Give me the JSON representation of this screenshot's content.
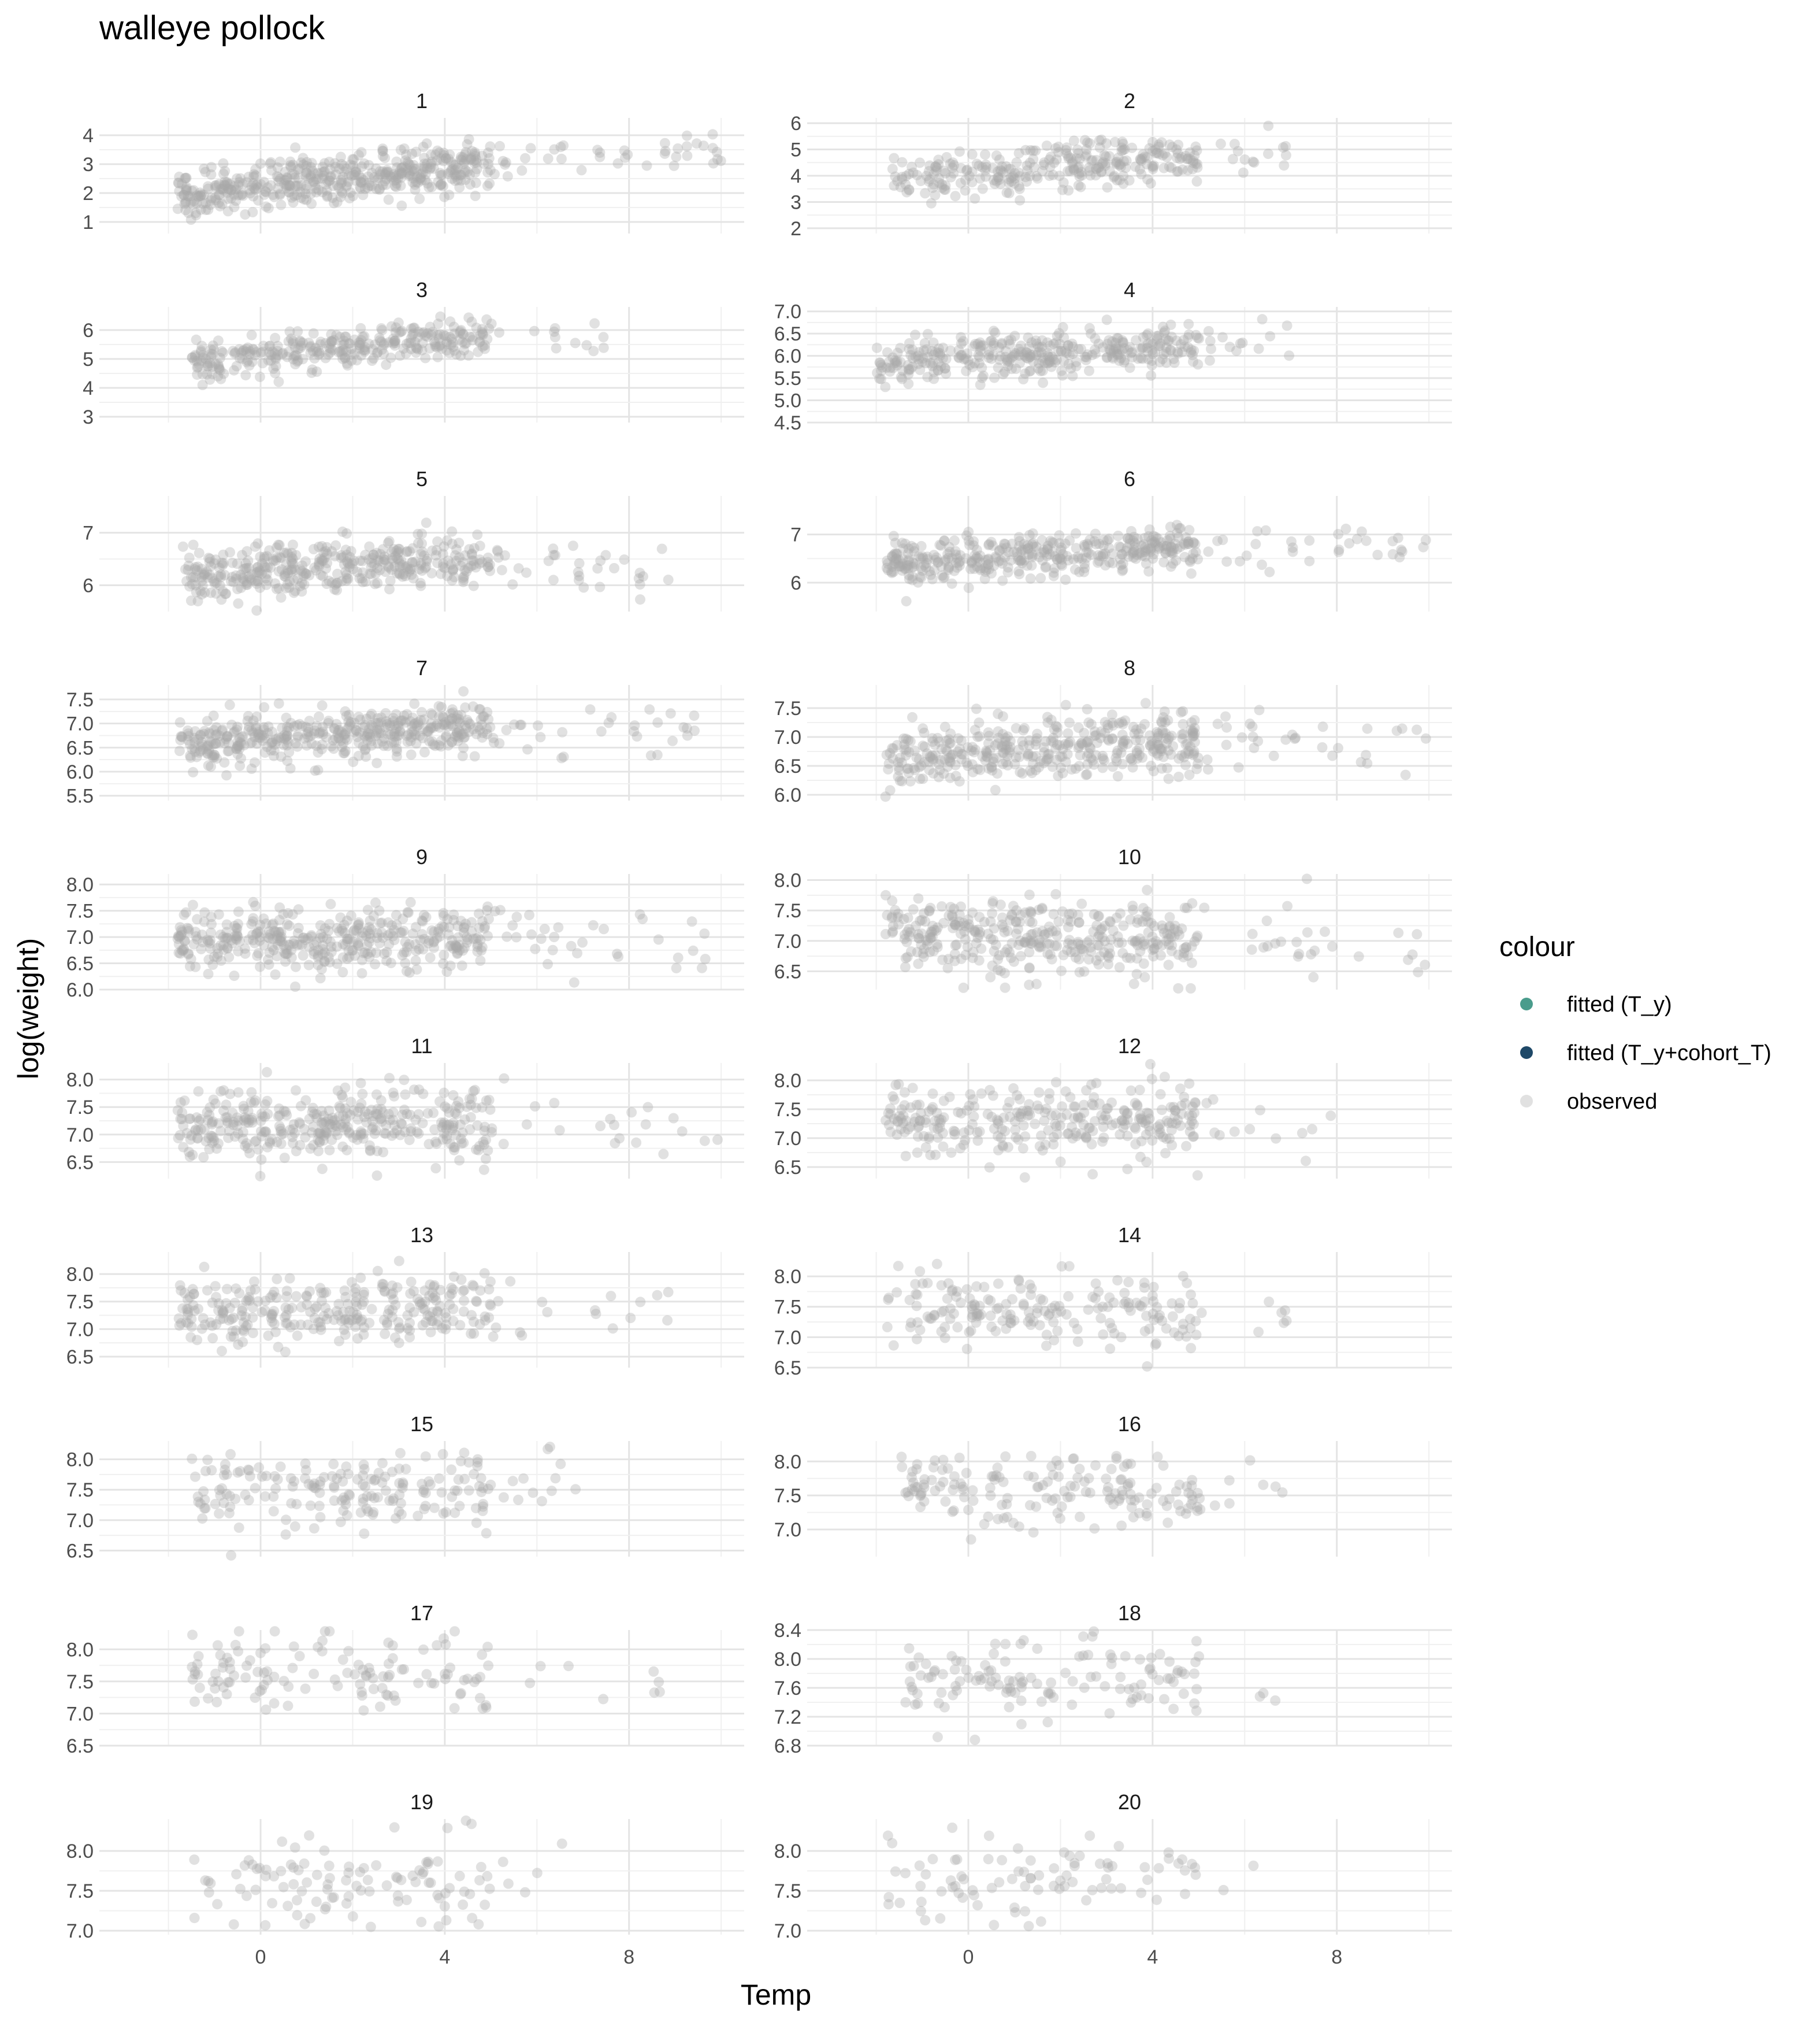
{
  "chart_data": {
    "type": "scatter",
    "title": "walleye pollock",
    "xlabel": "Temp",
    "ylabel": "log(weight)",
    "legend": {
      "title": "colour",
      "position": "right",
      "entries": [
        {
          "label": "fitted (T_y)",
          "color": "#4a9c8c"
        },
        {
          "label": "fitted (T_y+cohort_T)",
          "color": "#1f4968"
        },
        {
          "label": "observed",
          "color": "#c8c8c8"
        }
      ]
    },
    "x_range": [
      -3.5,
      10.5
    ],
    "x_ticks": [
      0,
      4,
      8
    ],
    "x_minor_ticks": [
      -2,
      2,
      6,
      10
    ],
    "grid": true,
    "point_color": "#aaaaaa",
    "point_opacity": 0.35,
    "panels": [
      {
        "label": "1",
        "ylim": [
          0.6,
          4.6
        ],
        "yticks": [
          1,
          2,
          3,
          4
        ],
        "tick_format": "int",
        "trend": [
          [
            -1.5,
            2.0
          ],
          [
            4,
            2.9
          ],
          [
            10,
            3.5
          ]
        ],
        "spread": 0.4,
        "x_range": [
          -1.8,
          10
        ],
        "n": 520
      },
      {
        "label": "2",
        "ylim": [
          1.8,
          6.2
        ],
        "yticks": [
          2,
          3,
          4,
          5,
          6
        ],
        "tick_format": "int",
        "trend": [
          [
            -1.5,
            3.9
          ],
          [
            4,
            4.6
          ],
          [
            7,
            4.9
          ]
        ],
        "spread": 0.45,
        "x_range": [
          -1.8,
          7
        ],
        "n": 300
      },
      {
        "label": "3",
        "ylim": [
          2.8,
          6.8
        ],
        "yticks": [
          3,
          4,
          5,
          6
        ],
        "tick_format": "int",
        "trend": [
          [
            -1,
            5.0
          ],
          [
            5,
            5.8
          ],
          [
            7,
            5.7
          ]
        ],
        "spread": 0.35,
        "x_range": [
          -1.5,
          7.5
        ],
        "n": 330
      },
      {
        "label": "4",
        "ylim": [
          4.5,
          7.1
        ],
        "yticks": [
          4.5,
          5.0,
          5.5,
          6.0,
          6.5,
          7.0
        ],
        "tick_format": "1dp",
        "trend": [
          [
            -2,
            5.85
          ],
          [
            4,
            6.2
          ],
          [
            7,
            6.4
          ]
        ],
        "spread": 0.25,
        "x_range": [
          -2,
          7
        ],
        "n": 360
      },
      {
        "label": "5",
        "ylim": [
          5.5,
          7.7
        ],
        "yticks": [
          6,
          7
        ],
        "tick_format": "int",
        "trend": [
          [
            -1.5,
            6.2
          ],
          [
            4,
            6.5
          ],
          [
            9,
            6.3
          ]
        ],
        "spread": 0.25,
        "x_range": [
          -1.7,
          9
        ],
        "n": 420
      },
      {
        "label": "6",
        "ylim": [
          5.4,
          7.8
        ],
        "yticks": [
          6,
          7
        ],
        "tick_format": "int",
        "trend": [
          [
            -1.5,
            6.4
          ],
          [
            4,
            6.7
          ],
          [
            10,
            6.7
          ]
        ],
        "spread": 0.22,
        "x_range": [
          -1.8,
          10
        ],
        "n": 420
      },
      {
        "label": "7",
        "ylim": [
          5.4,
          7.8
        ],
        "yticks": [
          5.5,
          6.0,
          6.5,
          7.0,
          7.5
        ],
        "tick_format": "1dp",
        "trend": [
          [
            -1.5,
            6.6
          ],
          [
            4,
            6.9
          ],
          [
            9.5,
            6.8
          ]
        ],
        "spread": 0.25,
        "x_range": [
          -1.8,
          9.5
        ],
        "n": 460
      },
      {
        "label": "8",
        "ylim": [
          5.9,
          7.9
        ],
        "yticks": [
          6.0,
          6.5,
          7.0,
          7.5
        ],
        "tick_format": "1dp",
        "trend": [
          [
            -1.5,
            6.7
          ],
          [
            4,
            6.9
          ],
          [
            10,
            6.9
          ]
        ],
        "spread": 0.28,
        "x_range": [
          -1.8,
          10
        ],
        "n": 420
      },
      {
        "label": "9",
        "ylim": [
          6.0,
          8.2
        ],
        "yticks": [
          6.0,
          6.5,
          7.0,
          7.5,
          8.0
        ],
        "tick_format": "1dp",
        "trend": [
          [
            -1.5,
            6.9
          ],
          [
            4,
            7.0
          ],
          [
            10,
            6.9
          ]
        ],
        "spread": 0.32,
        "x_range": [
          -1.8,
          10
        ],
        "n": 420
      },
      {
        "label": "10",
        "ylim": [
          6.2,
          8.1
        ],
        "yticks": [
          6.5,
          7.0,
          7.5,
          8.0
        ],
        "tick_format": "1dp",
        "trend": [
          [
            -1.5,
            7.1
          ],
          [
            4,
            7.0
          ],
          [
            10,
            6.9
          ]
        ],
        "spread": 0.3,
        "x_range": [
          -1.8,
          10
        ],
        "n": 380
      },
      {
        "label": "11",
        "ylim": [
          6.2,
          8.3
        ],
        "yticks": [
          6.5,
          7.0,
          7.5,
          8.0
        ],
        "tick_format": "1dp",
        "trend": [
          [
            -1.5,
            7.2
          ],
          [
            4,
            7.2
          ],
          [
            10,
            7.0
          ]
        ],
        "spread": 0.3,
        "x_range": [
          -1.8,
          10
        ],
        "n": 380
      },
      {
        "label": "12",
        "ylim": [
          6.3,
          8.3
        ],
        "yticks": [
          6.5,
          7.0,
          7.5,
          8.0
        ],
        "tick_format": "1dp",
        "trend": [
          [
            -1.5,
            7.3
          ],
          [
            4,
            7.3
          ],
          [
            8,
            7.2
          ]
        ],
        "spread": 0.3,
        "x_range": [
          -1.8,
          8
        ],
        "n": 300
      },
      {
        "label": "13",
        "ylim": [
          6.3,
          8.4
        ],
        "yticks": [
          6.5,
          7.0,
          7.5,
          8.0
        ],
        "tick_format": "1dp",
        "trend": [
          [
            -1.5,
            7.3
          ],
          [
            4,
            7.4
          ],
          [
            9,
            7.3
          ]
        ],
        "spread": 0.3,
        "x_range": [
          -1.8,
          9
        ],
        "n": 300
      },
      {
        "label": "14",
        "ylim": [
          6.5,
          8.4
        ],
        "yticks": [
          6.5,
          7.0,
          7.5,
          8.0
        ],
        "tick_format": "1dp",
        "trend": [
          [
            -1.5,
            7.5
          ],
          [
            4,
            7.4
          ],
          [
            7,
            7.5
          ]
        ],
        "spread": 0.3,
        "x_range": [
          -1.8,
          7
        ],
        "n": 190
      },
      {
        "label": "15",
        "ylim": [
          6.4,
          8.3
        ],
        "yticks": [
          6.5,
          7.0,
          7.5,
          8.0
        ],
        "tick_format": "1dp",
        "trend": [
          [
            -1.5,
            7.5
          ],
          [
            4,
            7.5
          ],
          [
            7,
            7.7
          ]
        ],
        "spread": 0.3,
        "x_range": [
          -1.5,
          7
        ],
        "n": 190
      },
      {
        "label": "16",
        "ylim": [
          6.6,
          8.3
        ],
        "yticks": [
          7.0,
          7.5,
          8.0
        ],
        "tick_format": "1dp",
        "trend": [
          [
            -1.5,
            7.6
          ],
          [
            4,
            7.6
          ],
          [
            7,
            7.7
          ]
        ],
        "spread": 0.28,
        "x_range": [
          -1.5,
          7
        ],
        "n": 170
      },
      {
        "label": "17",
        "ylim": [
          6.5,
          8.3
        ],
        "yticks": [
          6.5,
          7.0,
          7.5,
          8.0
        ],
        "tick_format": "1dp",
        "trend": [
          [
            -1.5,
            7.7
          ],
          [
            4,
            7.6
          ],
          [
            9,
            7.4
          ]
        ],
        "spread": 0.3,
        "x_range": [
          -1.5,
          9
        ],
        "n": 130
      },
      {
        "label": "18",
        "ylim": [
          6.8,
          8.4
        ],
        "yticks": [
          6.8,
          7.2,
          7.6,
          8.0,
          8.4
        ],
        "tick_format": "1dp",
        "trend": [
          [
            -1.5,
            7.7
          ],
          [
            4,
            7.7
          ],
          [
            7,
            7.7
          ]
        ],
        "spread": 0.28,
        "x_range": [
          -1.5,
          7
        ],
        "n": 130
      },
      {
        "label": "19",
        "ylim": [
          6.95,
          8.4
        ],
        "yticks": [
          7.0,
          7.5,
          8.0
        ],
        "tick_format": "1dp",
        "trend": [
          [
            -1.5,
            7.7
          ],
          [
            4,
            7.6
          ],
          [
            7,
            7.8
          ]
        ],
        "spread": 0.3,
        "x_range": [
          -1.5,
          7
        ],
        "n": 110
      },
      {
        "label": "20",
        "ylim": [
          6.95,
          8.4
        ],
        "yticks": [
          7.0,
          7.5,
          8.0
        ],
        "tick_format": "1dp",
        "trend": [
          [
            -1.5,
            7.7
          ],
          [
            4,
            7.7
          ],
          [
            7,
            7.8
          ]
        ],
        "spread": 0.3,
        "x_range": [
          -1.8,
          7
        ],
        "n": 90
      }
    ]
  }
}
